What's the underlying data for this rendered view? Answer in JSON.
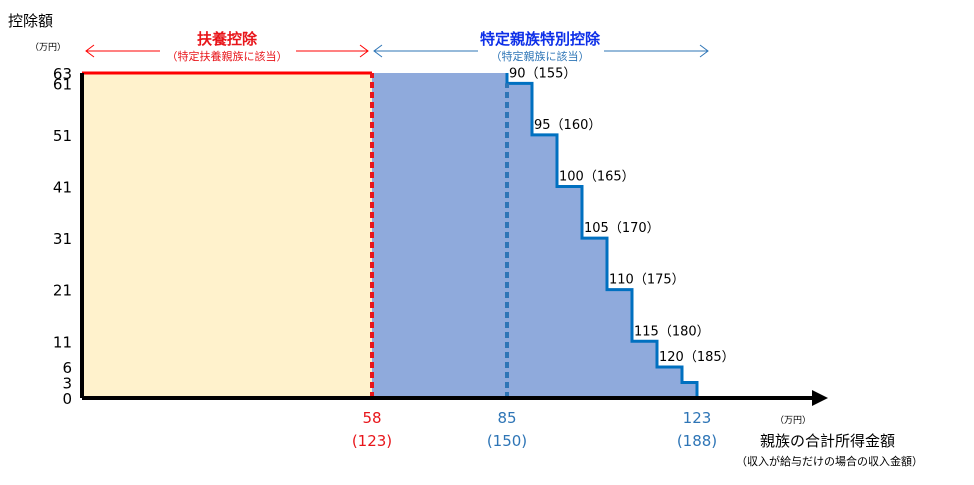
{
  "chart_data": {
    "type": "area",
    "ylabel": "控除額",
    "yunit": "（万円）",
    "xlabel": "親族の合計所得金額",
    "xlabel_note": "（収入が給与だけの場合の収入金額）",
    "xunit": "（万円）",
    "yticks": [
      0,
      3,
      6,
      11,
      21,
      31,
      41,
      51,
      61,
      63
    ],
    "ylim": [
      0,
      63
    ],
    "xlim": [
      0,
      140
    ],
    "regions": [
      {
        "name": "扶養控除",
        "note": "（特定扶養親族に該当）",
        "x_start": 0,
        "x_end": 58,
        "color": "#fff2cc",
        "label_color": "#e8161b"
      },
      {
        "name": "特定親族特別控除",
        "note": "（特定親族に該当）",
        "x_start": 58,
        "x_end": 123,
        "color": "#8faadc",
        "label_color": "#0d2fe8"
      }
    ],
    "step_series": {
      "name": "",
      "points": [
        {
          "x": 0,
          "y": 63
        },
        {
          "x": 85,
          "y": 63
        },
        {
          "x": 85,
          "y": 61
        },
        {
          "x": 90,
          "y": 61
        },
        {
          "x": 90,
          "y": 51
        },
        {
          "x": 95,
          "y": 51
        },
        {
          "x": 95,
          "y": 41
        },
        {
          "x": 100,
          "y": 41
        },
        {
          "x": 100,
          "y": 31
        },
        {
          "x": 105,
          "y": 31
        },
        {
          "x": 105,
          "y": 21
        },
        {
          "x": 110,
          "y": 21
        },
        {
          "x": 110,
          "y": 11
        },
        {
          "x": 115,
          "y": 11
        },
        {
          "x": 115,
          "y": 6
        },
        {
          "x": 120,
          "y": 6
        },
        {
          "x": 120,
          "y": 3
        },
        {
          "x": 123,
          "y": 3
        },
        {
          "x": 123,
          "y": 0
        },
        {
          "x": 131,
          "y": 0
        }
      ]
    },
    "step_labels": [
      {
        "x": 85,
        "y": 61,
        "text": "90（155）"
      },
      {
        "x": 90,
        "y": 51,
        "text": "95（160）"
      },
      {
        "x": 95,
        "y": 41,
        "text": "100（165）"
      },
      {
        "x": 100,
        "y": 31,
        "text": "105（170）"
      },
      {
        "x": 105,
        "y": 21,
        "text": "110（175）"
      },
      {
        "x": 110,
        "y": 11,
        "text": "115（180）"
      },
      {
        "x": 115,
        "y": 6,
        "text": "120（185）"
      }
    ],
    "markers": [
      {
        "x": 58,
        "label": "58",
        "sub": "(123)",
        "color": "#e8161b",
        "dashed": true
      },
      {
        "x": 85,
        "label": "85",
        "sub": "(150)",
        "color": "#2e75b6",
        "dashed": true
      },
      {
        "x": 123,
        "label": "123",
        "sub": "(188)",
        "color": "#2e75b6",
        "dashed": false
      }
    ],
    "line_colors": {
      "red_line": "#ff0000",
      "step_line": "#0070c0",
      "arrow_red": "#ff0000",
      "arrow_blue": "#2e75b6"
    }
  }
}
